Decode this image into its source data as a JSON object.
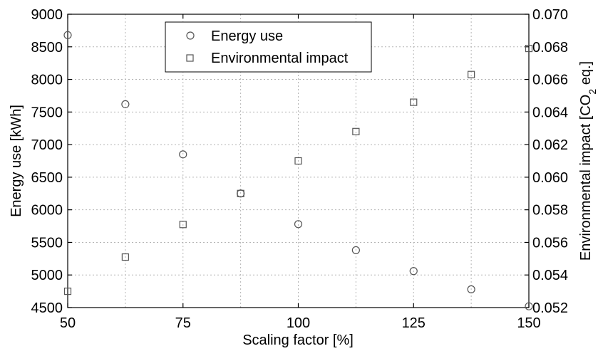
{
  "chart_data": {
    "type": "scatter",
    "xlabel": "Scaling factor [%]",
    "ylabel_left": "Energy use [kWh]",
    "ylabel_right": "Environmental impact [CO2 eq.]",
    "xlim": [
      50,
      150
    ],
    "ylim_left": [
      4500,
      9000
    ],
    "ylim_right": [
      0.052,
      0.07
    ],
    "x_ticks": [
      50,
      75,
      100,
      125,
      150
    ],
    "x_tick_labels": [
      "50",
      "75",
      "100",
      "125",
      "150"
    ],
    "y_left_ticks": [
      4500,
      5000,
      5500,
      6000,
      6500,
      7000,
      7500,
      8000,
      8500,
      9000
    ],
    "y_left_tick_labels": [
      "4500",
      "5000",
      "5500",
      "6000",
      "6500",
      "7000",
      "7500",
      "8000",
      "8500",
      "9000"
    ],
    "y_right_ticks": [
      0.052,
      0.054,
      0.056,
      0.058,
      0.06,
      0.062,
      0.064,
      0.066,
      0.068,
      0.07
    ],
    "y_right_tick_labels": [
      "0.052",
      "0.054",
      "0.056",
      "0.058",
      "0.060",
      "0.062",
      "0.064",
      "0.066",
      "0.068",
      "0.070"
    ],
    "grid": true,
    "legend_position": "top-center",
    "series": [
      {
        "name": "Energy use",
        "axis": "left",
        "marker": "circle",
        "x": [
          50,
          62.5,
          75,
          87.5,
          100,
          112.5,
          125,
          137.5,
          150
        ],
        "y": [
          8680,
          7620,
          6850,
          6250,
          5780,
          5380,
          5060,
          4780,
          4520
        ]
      },
      {
        "name": "Environmental impact",
        "axis": "right",
        "marker": "square",
        "x": [
          50,
          62.5,
          75,
          87.5,
          100,
          112.5,
          125,
          137.5,
          150
        ],
        "y": [
          0.053,
          0.0551,
          0.0571,
          0.059,
          0.061,
          0.0628,
          0.0646,
          0.0663,
          0.0679
        ]
      }
    ]
  }
}
